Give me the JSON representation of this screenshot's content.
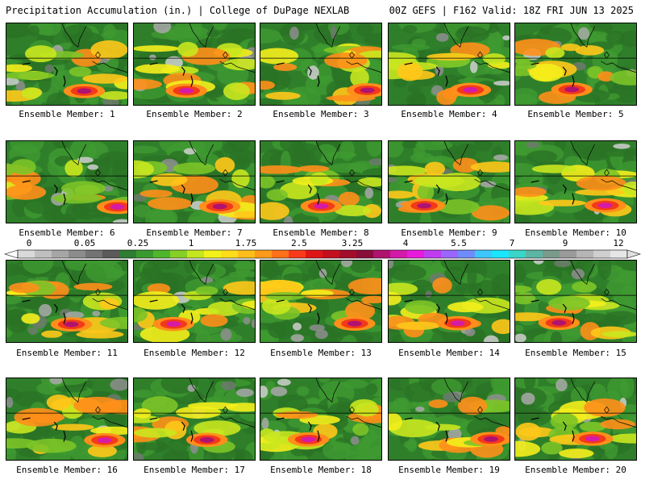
{
  "header": {
    "left": "Precipitation Accumulation (in.) | College of DuPage NEXLAB",
    "right": "00Z GEFS | F162 Valid: 18Z FRI JUN 13 2025"
  },
  "colorbar": {
    "ticks": [
      "0",
      "0.05",
      "0.25",
      "1",
      "1.75",
      "2.5",
      "3.25",
      "4",
      "5.5",
      "7",
      "9",
      "12"
    ],
    "colors": [
      "#d9d9d9",
      "#bfbfbf",
      "#a6a6a6",
      "#8c8c8c",
      "#737373",
      "#5a5a5a",
      "#2e7d32",
      "#3b9a2f",
      "#4fb52a",
      "#86cf26",
      "#c4e61f",
      "#f2f21a",
      "#ffdc1a",
      "#ffbe1a",
      "#ff9a1a",
      "#ff701a",
      "#f83a1a",
      "#e01616",
      "#c40f1f",
      "#a30d2a",
      "#8a0c3a",
      "#b0126f",
      "#d41aa8",
      "#e81adc",
      "#c03cf0",
      "#9a66ff",
      "#6f8cff",
      "#3ec7ff",
      "#1ae6ff",
      "#3ad6c8",
      "#5cb5a5",
      "#7a9a8c",
      "#9a9a9a",
      "#b5b5b5",
      "#cfcfcf",
      "#e6e6e6"
    ]
  },
  "members": [
    {
      "label": "Ensemble Member: 1"
    },
    {
      "label": "Ensemble Member: 2"
    },
    {
      "label": "Ensemble Member: 3"
    },
    {
      "label": "Ensemble Member: 4"
    },
    {
      "label": "Ensemble Member: 5"
    },
    {
      "label": "Ensemble Member: 6"
    },
    {
      "label": "Ensemble Member: 7"
    },
    {
      "label": "Ensemble Member: 8"
    },
    {
      "label": "Ensemble Member: 9"
    },
    {
      "label": "Ensemble Member: 10"
    },
    {
      "label": "Ensemble Member: 11"
    },
    {
      "label": "Ensemble Member: 12"
    },
    {
      "label": "Ensemble Member: 13"
    },
    {
      "label": "Ensemble Member: 14"
    },
    {
      "label": "Ensemble Member: 15"
    },
    {
      "label": "Ensemble Member: 16"
    },
    {
      "label": "Ensemble Member: 17"
    },
    {
      "label": "Ensemble Member: 18"
    },
    {
      "label": "Ensemble Member: 19"
    },
    {
      "label": "Ensemble Member: 20"
    }
  ]
}
